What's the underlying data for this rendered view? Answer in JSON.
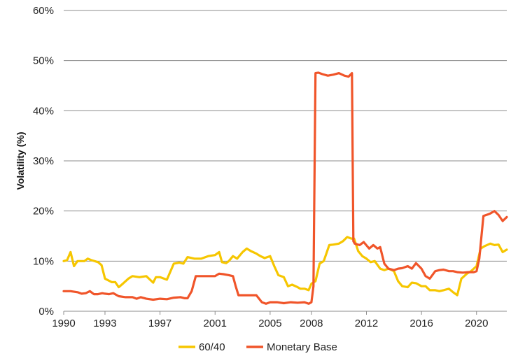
{
  "chart_data": {
    "type": "line",
    "title": "",
    "xlabel": "",
    "ylabel": "Volatility (%)",
    "xlim": [
      1990,
      2022.2
    ],
    "ylim": [
      0,
      60
    ],
    "yticks": [
      0,
      10,
      20,
      30,
      40,
      50,
      60
    ],
    "ytick_labels": [
      "0%",
      "10%",
      "20%",
      "30%",
      "40%",
      "50%",
      "60%"
    ],
    "xticks": [
      1990,
      1993,
      1997,
      2001,
      2005,
      2008,
      2012,
      2016,
      2020
    ],
    "xtick_labels": [
      "1990",
      "1993",
      "1997",
      "2001",
      "2005",
      "2008",
      "2012",
      "2016",
      "2020"
    ],
    "grid": "horizontal",
    "legend_position": "bottom-center",
    "series": [
      {
        "name": "60/40",
        "color": "#F6C600",
        "x": [
          1990.0,
          1990.25,
          1990.5,
          1990.75,
          1991.0,
          1991.5,
          1991.75,
          1992.0,
          1992.5,
          1992.75,
          1993.0,
          1993.5,
          1993.75,
          1994.0,
          1994.3,
          1994.7,
          1995.0,
          1995.5,
          1996.0,
          1996.5,
          1996.7,
          1997.0,
          1997.5,
          1998.0,
          1998.4,
          1998.7,
          1999.0,
          1999.5,
          2000.0,
          2000.5,
          2001.0,
          2001.3,
          2001.5,
          2001.8,
          2002.0,
          2002.3,
          2002.6,
          2003.0,
          2003.3,
          2003.6,
          2004.0,
          2004.3,
          2004.6,
          2005.0,
          2005.3,
          2005.6,
          2006.0,
          2006.3,
          2006.6,
          2007.0,
          2007.2,
          2007.5,
          2007.8,
          2008.0,
          2008.3,
          2008.6,
          2008.9,
          2009.3,
          2009.6,
          2010.0,
          2010.3,
          2010.6,
          2010.9,
          2011.1,
          2011.4,
          2011.7,
          2012.0,
          2012.3,
          2012.6,
          2013.0,
          2013.3,
          2013.6,
          2014.0,
          2014.3,
          2014.6,
          2015.0,
          2015.3,
          2015.6,
          2016.0,
          2016.3,
          2016.6,
          2017.0,
          2017.3,
          2017.6,
          2018.0,
          2018.3,
          2018.6,
          2018.9,
          2019.3,
          2019.6,
          2020.0,
          2020.3,
          2020.6,
          2021.0,
          2021.3,
          2021.6,
          2021.9,
          2022.2
        ],
        "values": [
          10.0,
          10.2,
          11.8,
          9.0,
          10.0,
          10.0,
          10.5,
          10.2,
          9.8,
          9.2,
          6.5,
          5.8,
          5.8,
          4.8,
          5.5,
          6.5,
          7.0,
          6.8,
          7.0,
          5.7,
          6.8,
          6.8,
          6.3,
          9.5,
          9.7,
          9.5,
          10.8,
          10.5,
          10.5,
          11.0,
          11.2,
          11.8,
          9.8,
          9.6,
          10.0,
          11.0,
          10.5,
          11.8,
          12.5,
          12.0,
          11.5,
          11.0,
          10.6,
          11.0,
          9.0,
          7.2,
          6.8,
          5.0,
          5.3,
          4.8,
          4.5,
          4.5,
          4.2,
          5.5,
          6.0,
          9.5,
          10.0,
          13.2,
          13.3,
          13.5,
          14.0,
          14.8,
          14.5,
          14.5,
          12.0,
          11.0,
          10.5,
          9.8,
          10.0,
          8.5,
          8.2,
          8.5,
          8.0,
          6.0,
          5.0,
          4.8,
          5.7,
          5.6,
          5.0,
          5.0,
          4.2,
          4.2,
          4.0,
          4.2,
          4.5,
          3.8,
          3.2,
          6.5,
          7.5,
          8.0,
          9.0,
          12.5,
          13.0,
          13.5,
          13.2,
          13.3,
          11.8,
          12.3
        ]
      },
      {
        "name": "Monetary Base",
        "color": "#F0552A",
        "x": [
          1990.0,
          1990.5,
          1991.0,
          1991.3,
          1991.6,
          1991.9,
          1992.2,
          1992.5,
          1992.8,
          1993.0,
          1993.3,
          1993.6,
          1994.0,
          1994.5,
          1995.0,
          1995.3,
          1995.6,
          1996.0,
          1996.5,
          1997.0,
          1997.5,
          1998.0,
          1998.5,
          1998.8,
          1999.0,
          1999.3,
          1999.6,
          2000.0,
          2000.5,
          2001.0,
          2001.3,
          2001.6,
          2002.0,
          2002.3,
          2002.5,
          2002.7,
          2003.0,
          2003.5,
          2004.0,
          2004.4,
          2004.7,
          2005.0,
          2005.5,
          2006.0,
          2006.5,
          2007.0,
          2007.5,
          2007.8,
          2008.0,
          2008.15,
          2008.3,
          2008.5,
          2008.8,
          2009.2,
          2009.6,
          2010.0,
          2010.4,
          2010.7,
          2010.95,
          2011.05,
          2011.15,
          2011.5,
          2011.8,
          2012.2,
          2012.5,
          2012.8,
          2013.0,
          2013.3,
          2013.6,
          2014.0,
          2014.3,
          2014.6,
          2015.0,
          2015.3,
          2015.6,
          2016.0,
          2016.3,
          2016.6,
          2017.0,
          2017.3,
          2017.6,
          2018.0,
          2018.3,
          2018.6,
          2019.0,
          2019.4,
          2019.8,
          2020.0,
          2020.2,
          2020.5,
          2020.8,
          2021.0,
          2021.3,
          2021.6,
          2021.9,
          2022.2
        ],
        "values": [
          4.0,
          4.0,
          3.8,
          3.5,
          3.6,
          4.0,
          3.4,
          3.4,
          3.6,
          3.5,
          3.4,
          3.6,
          3.0,
          2.8,
          2.8,
          2.5,
          2.8,
          2.5,
          2.3,
          2.5,
          2.4,
          2.7,
          2.8,
          2.6,
          2.6,
          4.0,
          7.0,
          7.0,
          7.0,
          7.0,
          7.5,
          7.4,
          7.2,
          7.0,
          5.0,
          3.2,
          3.2,
          3.2,
          3.2,
          1.8,
          1.5,
          1.8,
          1.8,
          1.6,
          1.8,
          1.7,
          1.8,
          1.5,
          1.8,
          5.0,
          47.5,
          47.6,
          47.3,
          47.0,
          47.2,
          47.5,
          47.0,
          46.8,
          47.5,
          14.0,
          13.5,
          13.2,
          13.8,
          12.5,
          13.2,
          12.5,
          12.8,
          9.5,
          8.5,
          8.2,
          8.5,
          8.6,
          9.0,
          8.5,
          9.6,
          8.5,
          7.0,
          6.5,
          8.0,
          8.2,
          8.3,
          8.0,
          8.0,
          7.8,
          7.7,
          7.8,
          7.8,
          8.0,
          10.5,
          19.0,
          19.3,
          19.5,
          20.0,
          19.2,
          18.0,
          18.8
        ]
      }
    ]
  }
}
